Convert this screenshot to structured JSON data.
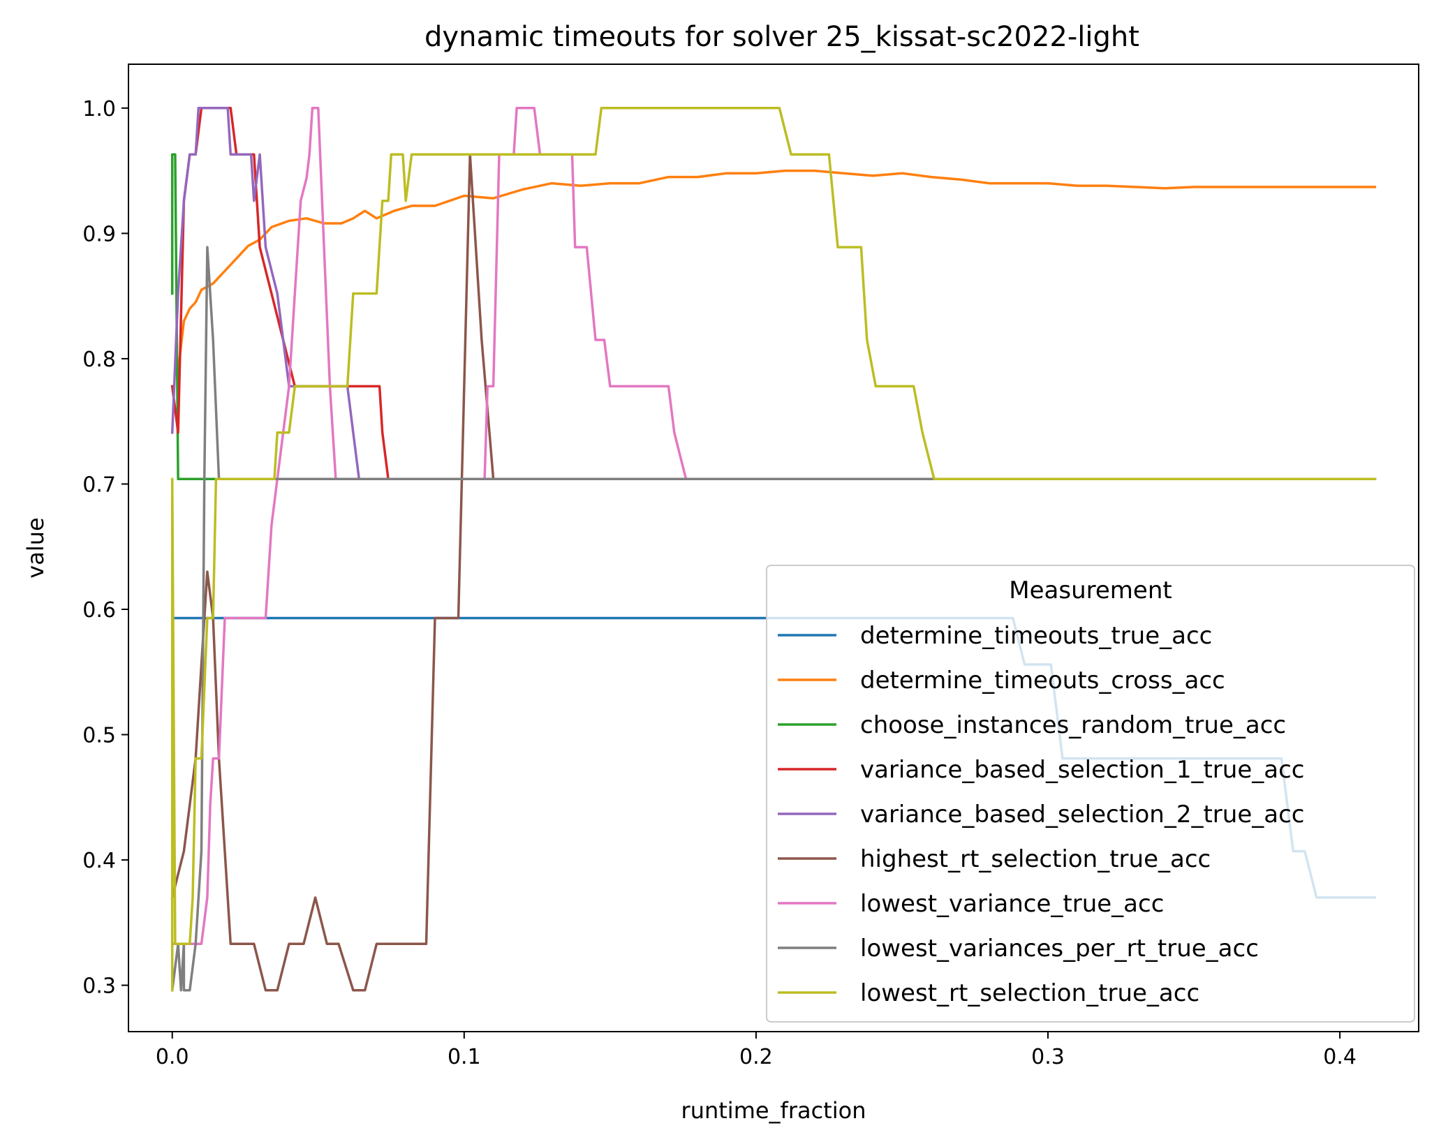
{
  "chart_data": {
    "type": "line",
    "title": "dynamic timeouts for solver 25_kissat-sc2022-light",
    "xlabel": "runtime_fraction",
    "ylabel": "value",
    "xlim": [
      -0.015,
      0.427
    ],
    "ylim": [
      0.263,
      1.035
    ],
    "xticks": [
      0.0,
      0.1,
      0.2,
      0.3,
      0.4
    ],
    "xtick_labels": [
      "0.0",
      "0.1",
      "0.2",
      "0.3",
      "0.4"
    ],
    "yticks": [
      0.3,
      0.4,
      0.5,
      0.6,
      0.7,
      0.8,
      0.9,
      1.0
    ],
    "ytick_labels": [
      "0.3",
      "0.4",
      "0.5",
      "0.6",
      "0.7",
      "0.8",
      "0.9",
      "1.0"
    ],
    "grid": false,
    "legend": {
      "title": "Measurement",
      "position": "lower-right"
    },
    "series": [
      {
        "name": "determine_timeouts_true_acc",
        "color": "#1f77b4",
        "points": [
          [
            0.0,
            0.593
          ],
          [
            0.288,
            0.593
          ],
          [
            0.292,
            0.556
          ],
          [
            0.301,
            0.556
          ],
          [
            0.305,
            0.481
          ],
          [
            0.38,
            0.481
          ],
          [
            0.384,
            0.407
          ],
          [
            0.388,
            0.407
          ],
          [
            0.392,
            0.37
          ],
          [
            0.412,
            0.37
          ]
        ]
      },
      {
        "name": "determine_timeouts_cross_acc",
        "color": "#ff7f0e",
        "points": [
          [
            0.002,
            0.79
          ],
          [
            0.004,
            0.83
          ],
          [
            0.006,
            0.84
          ],
          [
            0.008,
            0.845
          ],
          [
            0.01,
            0.855
          ],
          [
            0.014,
            0.86
          ],
          [
            0.018,
            0.87
          ],
          [
            0.022,
            0.88
          ],
          [
            0.026,
            0.89
          ],
          [
            0.03,
            0.895
          ],
          [
            0.034,
            0.905
          ],
          [
            0.04,
            0.91
          ],
          [
            0.046,
            0.912
          ],
          [
            0.052,
            0.908
          ],
          [
            0.058,
            0.908
          ],
          [
            0.062,
            0.912
          ],
          [
            0.066,
            0.918
          ],
          [
            0.07,
            0.912
          ],
          [
            0.076,
            0.918
          ],
          [
            0.082,
            0.922
          ],
          [
            0.09,
            0.922
          ],
          [
            0.1,
            0.93
          ],
          [
            0.11,
            0.928
          ],
          [
            0.12,
            0.935
          ],
          [
            0.13,
            0.94
          ],
          [
            0.14,
            0.938
          ],
          [
            0.15,
            0.94
          ],
          [
            0.16,
            0.94
          ],
          [
            0.17,
            0.945
          ],
          [
            0.18,
            0.945
          ],
          [
            0.19,
            0.948
          ],
          [
            0.2,
            0.948
          ],
          [
            0.21,
            0.95
          ],
          [
            0.22,
            0.95
          ],
          [
            0.23,
            0.948
          ],
          [
            0.24,
            0.946
          ],
          [
            0.25,
            0.948
          ],
          [
            0.26,
            0.945
          ],
          [
            0.27,
            0.943
          ],
          [
            0.28,
            0.94
          ],
          [
            0.29,
            0.94
          ],
          [
            0.3,
            0.94
          ],
          [
            0.31,
            0.938
          ],
          [
            0.32,
            0.938
          ],
          [
            0.33,
            0.937
          ],
          [
            0.34,
            0.936
          ],
          [
            0.35,
            0.937
          ],
          [
            0.37,
            0.937
          ],
          [
            0.39,
            0.937
          ],
          [
            0.412,
            0.937
          ]
        ]
      },
      {
        "name": "choose_instances_random_true_acc",
        "color": "#2ca02c",
        "points": [
          [
            0.0,
            0.852
          ],
          [
            0.0,
            0.963
          ],
          [
            0.001,
            0.963
          ],
          [
            0.002,
            0.704
          ],
          [
            0.412,
            0.704
          ]
        ]
      },
      {
        "name": "variance_based_selection_1_true_acc",
        "color": "#d62728",
        "points": [
          [
            0.0,
            0.778
          ],
          [
            0.002,
            0.741
          ],
          [
            0.004,
            0.926
          ],
          [
            0.006,
            0.963
          ],
          [
            0.008,
            0.963
          ],
          [
            0.01,
            1.0
          ],
          [
            0.02,
            1.0
          ],
          [
            0.022,
            0.963
          ],
          [
            0.028,
            0.963
          ],
          [
            0.03,
            0.889
          ],
          [
            0.034,
            0.852
          ],
          [
            0.038,
            0.815
          ],
          [
            0.042,
            0.778
          ],
          [
            0.071,
            0.778
          ],
          [
            0.072,
            0.741
          ],
          [
            0.074,
            0.704
          ],
          [
            0.412,
            0.704
          ]
        ]
      },
      {
        "name": "variance_based_selection_2_true_acc",
        "color": "#9467bd",
        "points": [
          [
            0.0,
            0.741
          ],
          [
            0.002,
            0.852
          ],
          [
            0.004,
            0.926
          ],
          [
            0.006,
            0.963
          ],
          [
            0.008,
            0.963
          ],
          [
            0.009,
            1.0
          ],
          [
            0.019,
            1.0
          ],
          [
            0.02,
            0.963
          ],
          [
            0.027,
            0.963
          ],
          [
            0.028,
            0.926
          ],
          [
            0.03,
            0.963
          ],
          [
            0.032,
            0.889
          ],
          [
            0.036,
            0.852
          ],
          [
            0.04,
            0.778
          ],
          [
            0.06,
            0.778
          ],
          [
            0.062,
            0.741
          ],
          [
            0.064,
            0.704
          ],
          [
            0.412,
            0.704
          ]
        ]
      },
      {
        "name": "highest_rt_selection_true_acc",
        "color": "#8c564b",
        "points": [
          [
            0.0,
            0.37
          ],
          [
            0.004,
            0.407
          ],
          [
            0.008,
            0.481
          ],
          [
            0.01,
            0.556
          ],
          [
            0.012,
            0.63
          ],
          [
            0.014,
            0.593
          ],
          [
            0.016,
            0.481
          ],
          [
            0.018,
            0.407
          ],
          [
            0.02,
            0.333
          ],
          [
            0.028,
            0.333
          ],
          [
            0.032,
            0.296
          ],
          [
            0.036,
            0.296
          ],
          [
            0.04,
            0.333
          ],
          [
            0.045,
            0.333
          ],
          [
            0.049,
            0.37
          ],
          [
            0.053,
            0.333
          ],
          [
            0.057,
            0.333
          ],
          [
            0.062,
            0.296
          ],
          [
            0.066,
            0.296
          ],
          [
            0.07,
            0.333
          ],
          [
            0.087,
            0.333
          ],
          [
            0.09,
            0.593
          ],
          [
            0.098,
            0.593
          ],
          [
            0.102,
            0.963
          ],
          [
            0.106,
            0.815
          ],
          [
            0.11,
            0.704
          ],
          [
            0.412,
            0.704
          ]
        ]
      },
      {
        "name": "lowest_variance_true_acc",
        "color": "#e377c2",
        "points": [
          [
            0.0,
            0.333
          ],
          [
            0.01,
            0.333
          ],
          [
            0.012,
            0.37
          ],
          [
            0.013,
            0.444
          ],
          [
            0.014,
            0.481
          ],
          [
            0.016,
            0.481
          ],
          [
            0.018,
            0.593
          ],
          [
            0.032,
            0.593
          ],
          [
            0.034,
            0.667
          ],
          [
            0.036,
            0.704
          ],
          [
            0.038,
            0.741
          ],
          [
            0.04,
            0.778
          ],
          [
            0.042,
            0.852
          ],
          [
            0.044,
            0.926
          ],
          [
            0.046,
            0.944
          ],
          [
            0.047,
            0.963
          ],
          [
            0.048,
            1.0
          ],
          [
            0.05,
            1.0
          ],
          [
            0.052,
            0.889
          ],
          [
            0.054,
            0.778
          ],
          [
            0.056,
            0.704
          ],
          [
            0.107,
            0.704
          ],
          [
            0.108,
            0.778
          ],
          [
            0.11,
            0.778
          ],
          [
            0.112,
            0.963
          ],
          [
            0.117,
            0.963
          ],
          [
            0.118,
            1.0
          ],
          [
            0.124,
            1.0
          ],
          [
            0.126,
            0.963
          ],
          [
            0.137,
            0.963
          ],
          [
            0.138,
            0.889
          ],
          [
            0.142,
            0.889
          ],
          [
            0.145,
            0.815
          ],
          [
            0.148,
            0.815
          ],
          [
            0.15,
            0.778
          ],
          [
            0.17,
            0.778
          ],
          [
            0.172,
            0.741
          ],
          [
            0.176,
            0.704
          ],
          [
            0.412,
            0.704
          ]
        ]
      },
      {
        "name": "lowest_variances_per_rt_true_acc",
        "color": "#7f7f7f",
        "points": [
          [
            0.0,
            0.296
          ],
          [
            0.002,
            0.333
          ],
          [
            0.003,
            0.296
          ],
          [
            0.004,
            0.333
          ],
          [
            0.004,
            0.296
          ],
          [
            0.006,
            0.296
          ],
          [
            0.008,
            0.333
          ],
          [
            0.01,
            0.407
          ],
          [
            0.011,
            0.704
          ],
          [
            0.012,
            0.889
          ],
          [
            0.014,
            0.815
          ],
          [
            0.016,
            0.704
          ],
          [
            0.412,
            0.704
          ]
        ]
      },
      {
        "name": "lowest_rt_selection_true_acc",
        "color": "#bcbd22",
        "points": [
          [
            0.0,
            0.296
          ],
          [
            0.0,
            0.704
          ],
          [
            0.001,
            0.333
          ],
          [
            0.006,
            0.333
          ],
          [
            0.007,
            0.37
          ],
          [
            0.008,
            0.481
          ],
          [
            0.01,
            0.481
          ],
          [
            0.012,
            0.593
          ],
          [
            0.014,
            0.593
          ],
          [
            0.015,
            0.704
          ],
          [
            0.035,
            0.704
          ],
          [
            0.036,
            0.741
          ],
          [
            0.04,
            0.741
          ],
          [
            0.042,
            0.778
          ],
          [
            0.06,
            0.778
          ],
          [
            0.062,
            0.852
          ],
          [
            0.07,
            0.852
          ],
          [
            0.072,
            0.926
          ],
          [
            0.074,
            0.926
          ],
          [
            0.075,
            0.963
          ],
          [
            0.079,
            0.963
          ],
          [
            0.08,
            0.926
          ],
          [
            0.082,
            0.963
          ],
          [
            0.145,
            0.963
          ],
          [
            0.147,
            1.0
          ],
          [
            0.208,
            1.0
          ],
          [
            0.212,
            0.963
          ],
          [
            0.225,
            0.963
          ],
          [
            0.228,
            0.889
          ],
          [
            0.236,
            0.889
          ],
          [
            0.238,
            0.815
          ],
          [
            0.241,
            0.778
          ],
          [
            0.254,
            0.778
          ],
          [
            0.257,
            0.741
          ],
          [
            0.261,
            0.704
          ],
          [
            0.412,
            0.704
          ]
        ]
      }
    ]
  }
}
